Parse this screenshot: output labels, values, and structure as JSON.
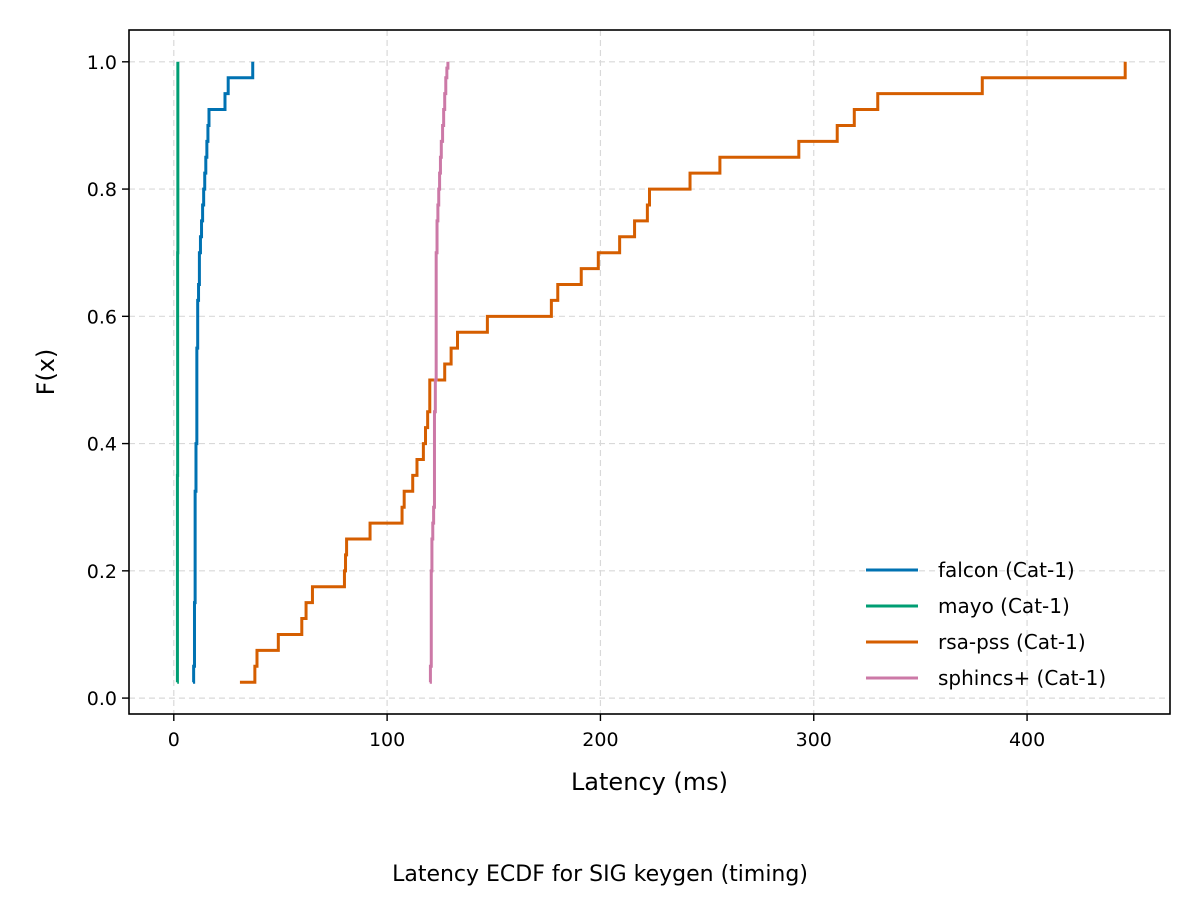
{
  "chart_data": {
    "type": "line",
    "subtype": "ecdf-step",
    "title": "Latency ECDF for SIG keygen (timing)",
    "xlabel": "Latency (ms)",
    "ylabel": "F(x)",
    "xlim": [
      -21,
      467
    ],
    "ylim": [
      -0.025,
      1.05
    ],
    "xticks": [
      0,
      100,
      200,
      300,
      400
    ],
    "yticks": [
      0.0,
      0.2,
      0.4,
      0.6,
      0.8,
      1.0
    ],
    "xtick_labels": [
      "0",
      "100",
      "200",
      "300",
      "400"
    ],
    "ytick_labels": [
      "0.0",
      "0.2",
      "0.4",
      "0.6",
      "0.8",
      "1.0"
    ],
    "grid": true,
    "legend_position": "bottom-right",
    "series": [
      {
        "name": "falcon (Cat-1)",
        "color": "#0072b2",
        "x": [
          9.0,
          9.3,
          9.7,
          10.0,
          10.4,
          10.8,
          11.2,
          11.6,
          12.0,
          12.5,
          13.0,
          13.5,
          14.0,
          14.5,
          15.0,
          15.5,
          16.0,
          16.5,
          24.0,
          25.5,
          37.0
        ],
        "y": [
          0.025,
          0.05,
          0.15,
          0.325,
          0.4,
          0.55,
          0.625,
          0.65,
          0.7,
          0.725,
          0.75,
          0.775,
          0.8,
          0.825,
          0.85,
          0.875,
          0.9,
          0.925,
          0.95,
          0.975,
          1.0
        ]
      },
      {
        "name": "mayo (Cat-1)",
        "color": "#009e73",
        "x": [
          1.6,
          1.7,
          1.8,
          1.9
        ],
        "y": [
          0.025,
          0.35,
          0.7,
          1.0
        ]
      },
      {
        "name": "rsa-pss (Cat-1)",
        "color": "#d55e00",
        "x": [
          31,
          38,
          39,
          49,
          60,
          62,
          65,
          80,
          80.5,
          81,
          92,
          107,
          108,
          112,
          114,
          117,
          118,
          119,
          120,
          127,
          130,
          133,
          135,
          147,
          177,
          180,
          183,
          191,
          199,
          209,
          216,
          222,
          223,
          242,
          256,
          293,
          311,
          319,
          330,
          379,
          446
        ],
        "y": [
          0.025,
          0.05,
          0.075,
          0.1,
          0.125,
          0.15,
          0.175,
          0.2,
          0.225,
          0.25,
          0.275,
          0.3,
          0.325,
          0.35,
          0.375,
          0.4,
          0.425,
          0.45,
          0.5,
          0.525,
          0.55,
          0.575,
          0.575,
          0.6,
          0.625,
          0.65,
          0.65,
          0.675,
          0.7,
          0.725,
          0.75,
          0.775,
          0.8,
          0.825,
          0.85,
          0.875,
          0.9,
          0.925,
          0.95,
          0.975,
          1.0
        ]
      },
      {
        "name": "sphincs+ (Cat-1)",
        "color": "#cc79a7",
        "x": [
          120.0,
          120.3,
          120.7,
          121.0,
          121.4,
          121.8,
          122.2,
          122.6,
          123.0,
          123.4,
          123.8,
          124.2,
          124.6,
          125.0,
          125.4,
          126.0,
          126.5,
          127.0,
          127.5,
          128.0,
          128.5
        ],
        "y": [
          0.025,
          0.05,
          0.2,
          0.25,
          0.275,
          0.3,
          0.45,
          0.5,
          0.7,
          0.75,
          0.775,
          0.8,
          0.825,
          0.85,
          0.875,
          0.9,
          0.925,
          0.95,
          0.975,
          0.99,
          1.0
        ]
      }
    ]
  }
}
